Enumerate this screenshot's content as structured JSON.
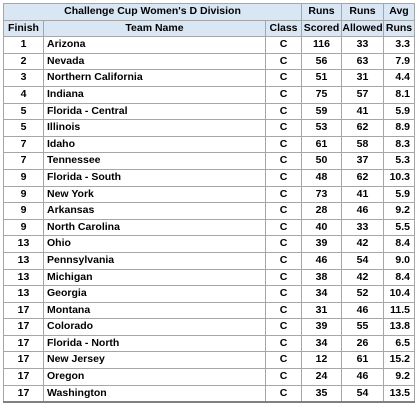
{
  "table": {
    "title": "Challenge Cup Women's D Division",
    "header_top": {
      "runs_scored": "Runs",
      "runs_allowed": "Runs",
      "avg": "Avg"
    },
    "header_bottom": {
      "finish": "Finish",
      "team": "Team Name",
      "class": "Class",
      "runs_scored": "Scored",
      "runs_allowed": "Allowed",
      "avg": "Runs"
    },
    "rows": [
      {
        "finish": "1",
        "team": "Arizona",
        "class": "C",
        "scored": "116",
        "allowed": "33",
        "avg": "3.3"
      },
      {
        "finish": "2",
        "team": "Nevada",
        "class": "C",
        "scored": "56",
        "allowed": "63",
        "avg": "7.9"
      },
      {
        "finish": "3",
        "team": "Northern California",
        "class": "C",
        "scored": "51",
        "allowed": "31",
        "avg": "4.4"
      },
      {
        "finish": "4",
        "team": "Indiana",
        "class": "C",
        "scored": "75",
        "allowed": "57",
        "avg": "8.1"
      },
      {
        "finish": "5",
        "team": "Florida - Central",
        "class": "C",
        "scored": "59",
        "allowed": "41",
        "avg": "5.9"
      },
      {
        "finish": "5",
        "team": "Illinois",
        "class": "C",
        "scored": "53",
        "allowed": "62",
        "avg": "8.9"
      },
      {
        "finish": "7",
        "team": "Idaho",
        "class": "C",
        "scored": "61",
        "allowed": "58",
        "avg": "8.3"
      },
      {
        "finish": "7",
        "team": "Tennessee",
        "class": "C",
        "scored": "50",
        "allowed": "37",
        "avg": "5.3"
      },
      {
        "finish": "9",
        "team": "Florida - South",
        "class": "C",
        "scored": "48",
        "allowed": "62",
        "avg": "10.3"
      },
      {
        "finish": "9",
        "team": "New York",
        "class": "C",
        "scored": "73",
        "allowed": "41",
        "avg": "5.9"
      },
      {
        "finish": "9",
        "team": "Arkansas",
        "class": "C",
        "scored": "28",
        "allowed": "46",
        "avg": "9.2"
      },
      {
        "finish": "9",
        "team": "North Carolina",
        "class": "C",
        "scored": "40",
        "allowed": "33",
        "avg": "5.5"
      },
      {
        "finish": "13",
        "team": "Ohio",
        "class": "C",
        "scored": "39",
        "allowed": "42",
        "avg": "8.4"
      },
      {
        "finish": "13",
        "team": "Pennsylvania",
        "class": "C",
        "scored": "46",
        "allowed": "54",
        "avg": "9.0"
      },
      {
        "finish": "13",
        "team": "Michigan",
        "class": "C",
        "scored": "38",
        "allowed": "42",
        "avg": "8.4"
      },
      {
        "finish": "13",
        "team": "Georgia",
        "class": "C",
        "scored": "34",
        "allowed": "52",
        "avg": "10.4"
      },
      {
        "finish": "17",
        "team": "Montana",
        "class": "C",
        "scored": "31",
        "allowed": "46",
        "avg": "11.5"
      },
      {
        "finish": "17",
        "team": "Colorado",
        "class": "C",
        "scored": "39",
        "allowed": "55",
        "avg": "13.8"
      },
      {
        "finish": "17",
        "team": "Florida - North",
        "class": "C",
        "scored": "34",
        "allowed": "26",
        "avg": "6.5"
      },
      {
        "finish": "17",
        "team": "New Jersey",
        "class": "C",
        "scored": "12",
        "allowed": "61",
        "avg": "15.2"
      },
      {
        "finish": "17",
        "team": "Oregon",
        "class": "C",
        "scored": "24",
        "allowed": "46",
        "avg": "9.2"
      },
      {
        "finish": "17",
        "team": "Washington",
        "class": "C",
        "scored": "35",
        "allowed": "54",
        "avg": "13.5"
      }
    ]
  },
  "colors": {
    "header_background": "#d9e7f5",
    "grid_line": "#a6a6a6",
    "text": "#000000"
  }
}
